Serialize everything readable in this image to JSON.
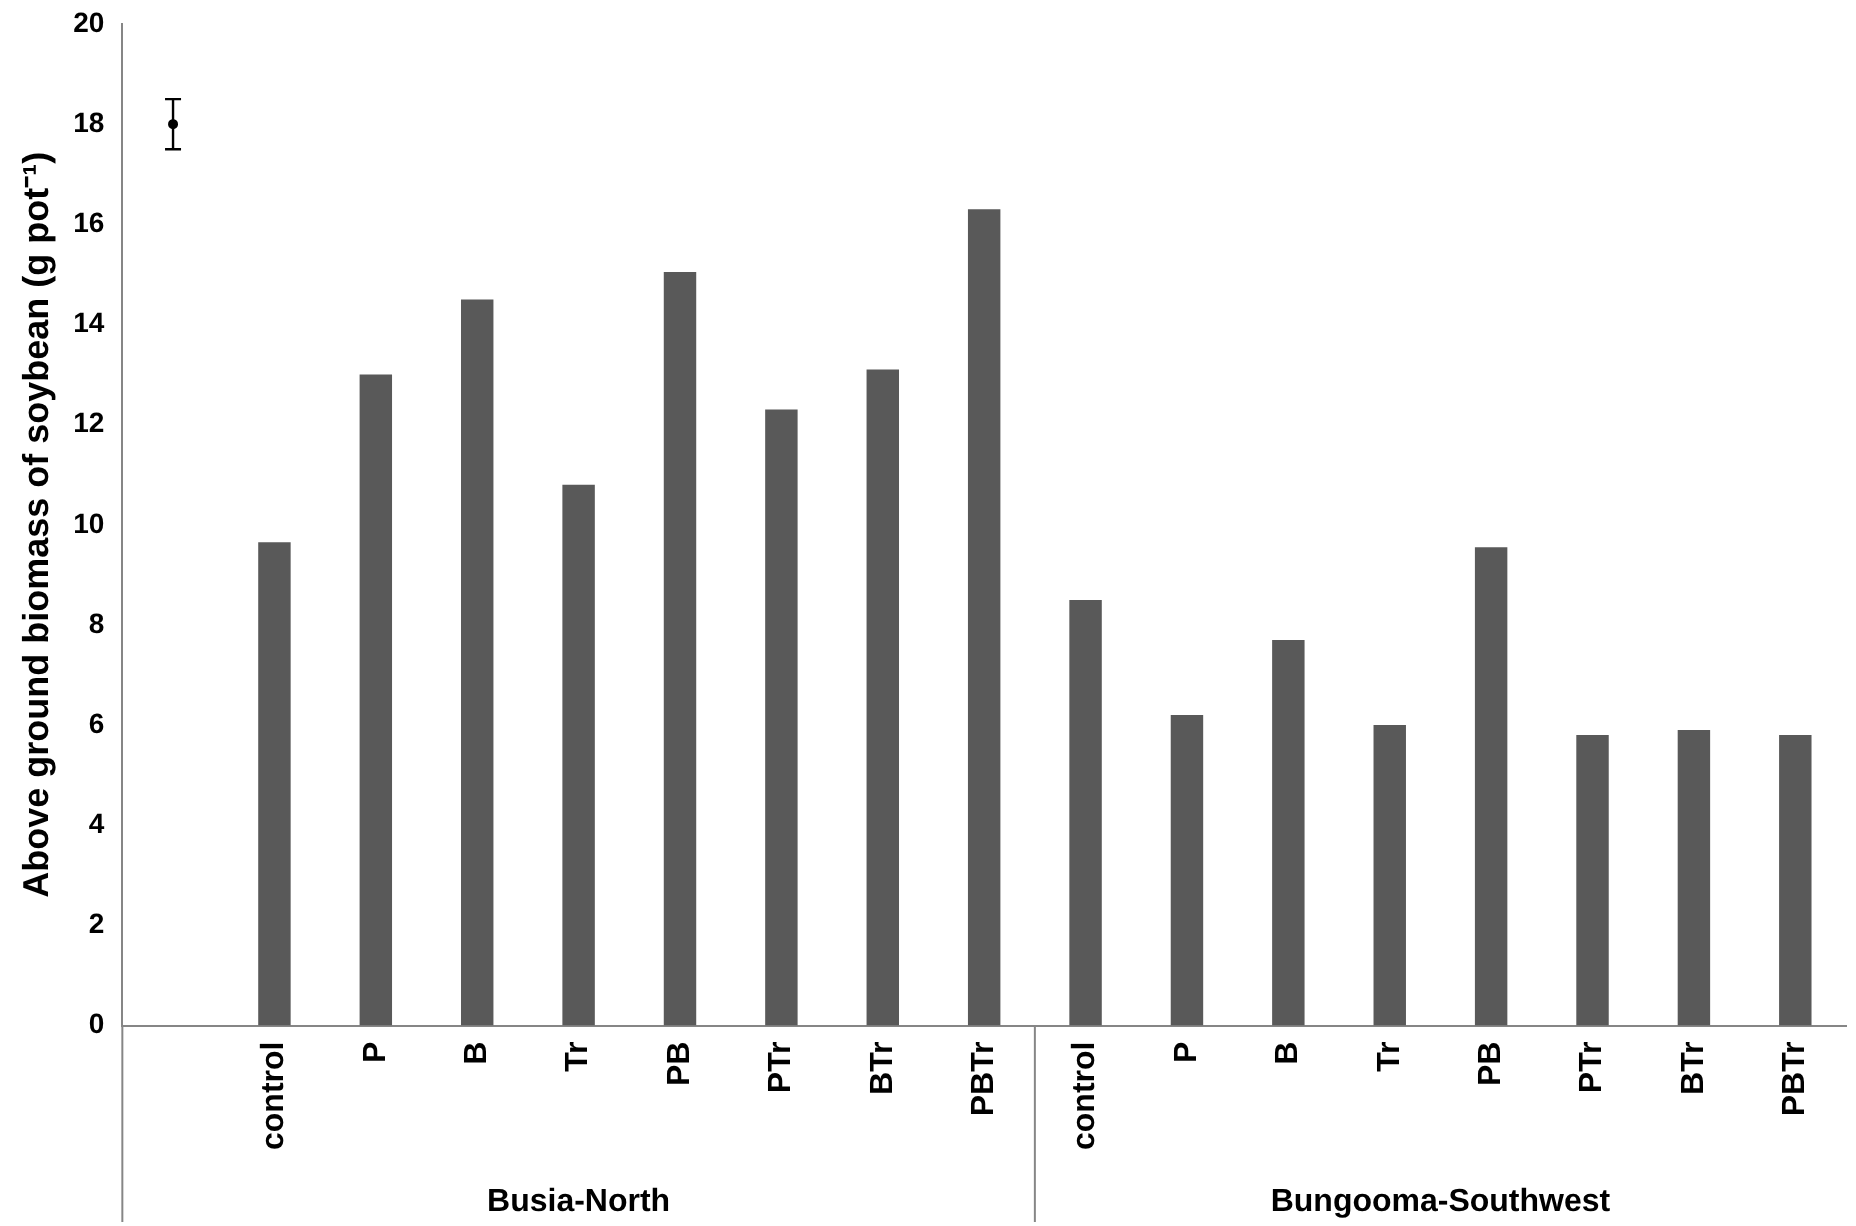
{
  "chart_data": {
    "type": "bar",
    "ylabel": "Above ground biomass of soybean (g pot⁻¹)",
    "categories": [
      null,
      "control",
      "P",
      "B",
      "Tr",
      "PB",
      "PTr",
      "BTr",
      "PBTr",
      "control",
      "P",
      "B",
      "Tr",
      "PB",
      "PTr",
      "BTr",
      "PBTr"
    ],
    "series": [
      {
        "color": "#595959",
        "values": [
          null,
          9.65,
          13.0,
          14.5,
          10.8,
          15.05,
          12.3,
          13.1,
          16.3,
          8.5,
          6.2,
          7.7,
          6.0,
          9.55,
          5.8,
          5.9,
          5.8
        ]
      },
      {
        "type": "scatter",
        "color": "#000000",
        "values": [
          18,
          null,
          null,
          null,
          null,
          null,
          null,
          null,
          null,
          null,
          null,
          null,
          null,
          null,
          null,
          null,
          null
        ],
        "errors": [
          0.5,
          null,
          null,
          null,
          null,
          null,
          null,
          null,
          null,
          null,
          null,
          null,
          null,
          null,
          null,
          null,
          null
        ]
      }
    ],
    "ylim": [
      0,
      20
    ],
    "yticks": [
      0,
      2,
      4,
      6,
      8,
      10,
      12,
      14,
      16,
      18,
      20
    ],
    "grid": false,
    "legend": false,
    "annotations": [
      "Busia-North",
      "Bungooma-Southwest"
    ]
  }
}
